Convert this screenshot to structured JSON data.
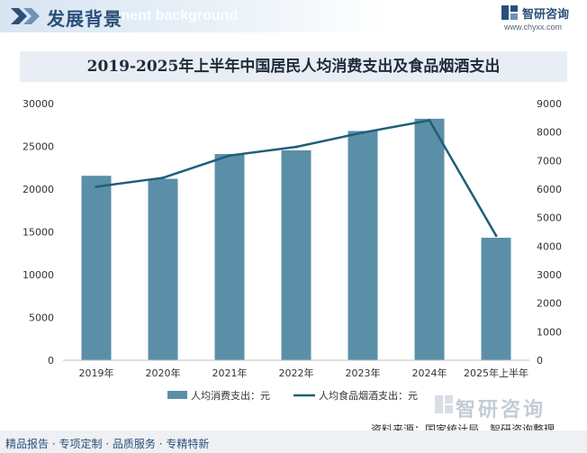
{
  "header": {
    "title": "发展背景",
    "subtitle_en": "ment background",
    "brand_name": "智研咨询",
    "brand_url": "www.chyxx.com",
    "watermark_text": "智研咨询",
    "accent_color": "#2b4f7a"
  },
  "chart_data": {
    "type": "bar",
    "title": "2019-2025年上半年中国居民人均消费支出及食品烟酒支出",
    "categories": [
      "2019年",
      "2020年",
      "2021年",
      "2022年",
      "2023年",
      "2024年",
      "2025年上半年"
    ],
    "series": [
      {
        "name": "人均消费支出：元",
        "type": "bar",
        "axis": "left",
        "color": "#5b8fa8",
        "values": [
          21559,
          21210,
          24100,
          24538,
          26796,
          28227,
          14318
        ]
      },
      {
        "name": "人均食品烟酒支出：元",
        "type": "line",
        "axis": "right",
        "color": "#1f5e78",
        "values": [
          6084,
          6397,
          7178,
          7481,
          7983,
          8411,
          4370
        ]
      }
    ],
    "y_left": {
      "min": 0,
      "max": 30000,
      "ticks": [
        0,
        5000,
        10000,
        15000,
        20000,
        25000,
        30000
      ]
    },
    "y_right": {
      "min": 0,
      "max": 9000,
      "ticks": [
        0,
        1000,
        2000,
        3000,
        4000,
        5000,
        6000,
        7000,
        8000,
        9000
      ]
    },
    "grid": false,
    "legend_position": "bottom"
  },
  "footer": {
    "left_text": "精品报告 · 专项定制 · 品质服务 · 专精特新",
    "source": "资料来源：国家统计局、智研咨询整理"
  }
}
